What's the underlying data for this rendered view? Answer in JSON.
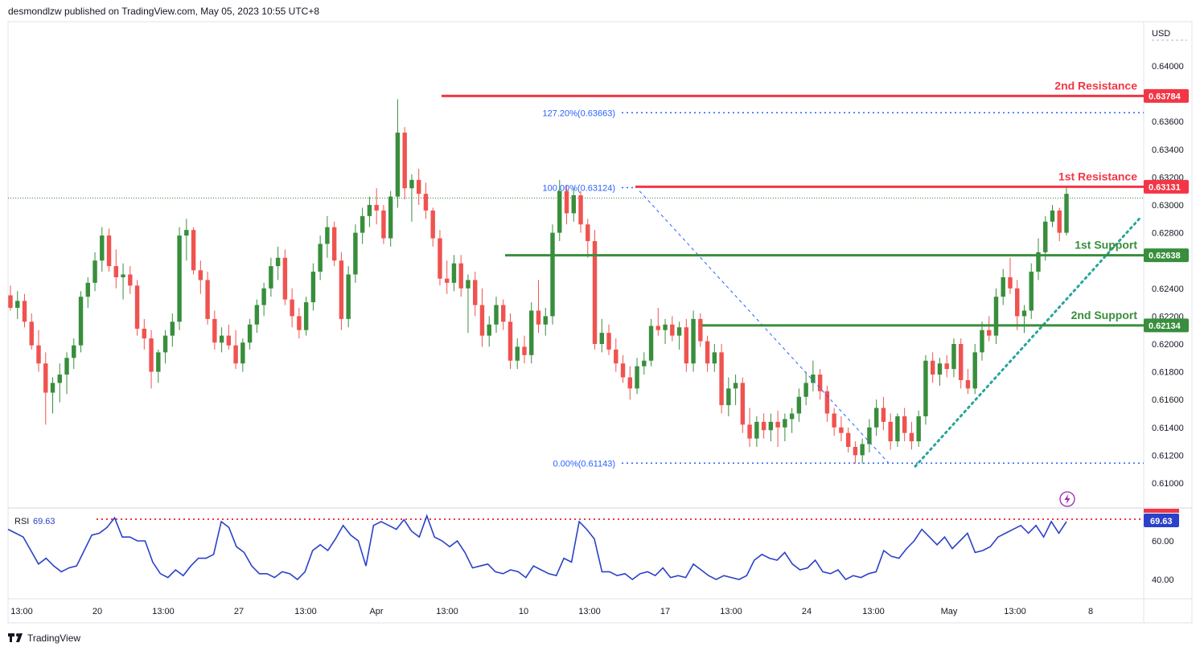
{
  "header": {
    "publisher_line": "desmondlzw published on TradingView.com, May 05, 2023 10:55 UTC+8"
  },
  "footer": {
    "brand": "TradingView"
  },
  "price_axis": {
    "currency": "USD",
    "ticks": [
      "0.64000",
      "0.63600",
      "0.63400",
      "0.63200",
      "0.63000",
      "0.62800",
      "0.62400",
      "0.62200",
      "0.62000",
      "0.61800",
      "0.61600",
      "0.61400",
      "0.61200",
      "0.61000"
    ]
  },
  "levels": {
    "resistance_2": {
      "label": "2nd Resistance",
      "value": "0.63784",
      "color": "#f23645"
    },
    "resistance_1": {
      "label": "1st Resistance",
      "value": "0.63131",
      "color": "#f23645"
    },
    "support_1": {
      "label": "1st Support",
      "value": "0.62638",
      "color": "#388e3c"
    },
    "support_2": {
      "label": "2nd Support",
      "value": "0.62134",
      "color": "#388e3c"
    }
  },
  "fib": {
    "f1272": "127.20%(0.63663)",
    "f100": "100.00%(0.63124)",
    "f0": "0.00%(0.61143)",
    "color": "#2962ff"
  },
  "rsi": {
    "label": "RSI",
    "value": "69.63",
    "ticks": [
      "60.00",
      "40.00"
    ],
    "line_color": "#2a41c9"
  },
  "time_axis": {
    "labels": [
      "13:00",
      "20",
      "13:00",
      "27",
      "13:00",
      "Apr",
      "13:00",
      "10",
      "13:00",
      "17",
      "13:00",
      "24",
      "13:00",
      "May",
      "13:00",
      "8"
    ]
  },
  "chart_data": {
    "type": "candlestick",
    "symbol_currency": "USD",
    "ylim": [
      0.6088,
      0.6415
    ],
    "last_price": 0.63131,
    "candles": [
      {
        "o": 0.6235,
        "h": 0.6242,
        "l": 0.6224,
        "c": 0.6226
      },
      {
        "o": 0.6226,
        "h": 0.6238,
        "l": 0.6218,
        "c": 0.6231
      },
      {
        "o": 0.6231,
        "h": 0.6236,
        "l": 0.6212,
        "c": 0.6216
      },
      {
        "o": 0.6216,
        "h": 0.6222,
        "l": 0.6196,
        "c": 0.6199
      },
      {
        "o": 0.6199,
        "h": 0.621,
        "l": 0.618,
        "c": 0.6186
      },
      {
        "o": 0.6186,
        "h": 0.6194,
        "l": 0.6142,
        "c": 0.6165
      },
      {
        "o": 0.6165,
        "h": 0.6176,
        "l": 0.615,
        "c": 0.6172
      },
      {
        "o": 0.6172,
        "h": 0.6186,
        "l": 0.6158,
        "c": 0.6178
      },
      {
        "o": 0.6178,
        "h": 0.6194,
        "l": 0.6164,
        "c": 0.619
      },
      {
        "o": 0.619,
        "h": 0.6204,
        "l": 0.6182,
        "c": 0.6199
      },
      {
        "o": 0.6199,
        "h": 0.6238,
        "l": 0.6194,
        "c": 0.6234
      },
      {
        "o": 0.6234,
        "h": 0.6248,
        "l": 0.6226,
        "c": 0.6244
      },
      {
        "o": 0.6244,
        "h": 0.6266,
        "l": 0.6238,
        "c": 0.626
      },
      {
        "o": 0.626,
        "h": 0.6284,
        "l": 0.6252,
        "c": 0.6278
      },
      {
        "o": 0.6278,
        "h": 0.6283,
        "l": 0.6252,
        "c": 0.6256
      },
      {
        "o": 0.6256,
        "h": 0.6268,
        "l": 0.624,
        "c": 0.6248
      },
      {
        "o": 0.6248,
        "h": 0.6258,
        "l": 0.6232,
        "c": 0.625
      },
      {
        "o": 0.625,
        "h": 0.6256,
        "l": 0.6236,
        "c": 0.6242
      },
      {
        "o": 0.6242,
        "h": 0.6246,
        "l": 0.6206,
        "c": 0.6211
      },
      {
        "o": 0.6211,
        "h": 0.6218,
        "l": 0.6196,
        "c": 0.6204
      },
      {
        "o": 0.6204,
        "h": 0.621,
        "l": 0.6168,
        "c": 0.618
      },
      {
        "o": 0.618,
        "h": 0.6196,
        "l": 0.6172,
        "c": 0.6194
      },
      {
        "o": 0.6194,
        "h": 0.621,
        "l": 0.6186,
        "c": 0.6206
      },
      {
        "o": 0.6206,
        "h": 0.6222,
        "l": 0.6198,
        "c": 0.6216
      },
      {
        "o": 0.6216,
        "h": 0.6284,
        "l": 0.621,
        "c": 0.6278
      },
      {
        "o": 0.6278,
        "h": 0.629,
        "l": 0.626,
        "c": 0.6282
      },
      {
        "o": 0.6282,
        "h": 0.6284,
        "l": 0.625,
        "c": 0.6253
      },
      {
        "o": 0.6253,
        "h": 0.626,
        "l": 0.6236,
        "c": 0.6246
      },
      {
        "o": 0.6246,
        "h": 0.6252,
        "l": 0.6214,
        "c": 0.6218
      },
      {
        "o": 0.6218,
        "h": 0.6224,
        "l": 0.6196,
        "c": 0.6201
      },
      {
        "o": 0.6201,
        "h": 0.6212,
        "l": 0.6194,
        "c": 0.6206
      },
      {
        "o": 0.6206,
        "h": 0.6214,
        "l": 0.6196,
        "c": 0.6199
      },
      {
        "o": 0.6199,
        "h": 0.621,
        "l": 0.6182,
        "c": 0.6186
      },
      {
        "o": 0.6186,
        "h": 0.6204,
        "l": 0.618,
        "c": 0.6201
      },
      {
        "o": 0.6201,
        "h": 0.6218,
        "l": 0.6196,
        "c": 0.6214
      },
      {
        "o": 0.6214,
        "h": 0.6232,
        "l": 0.6208,
        "c": 0.6228
      },
      {
        "o": 0.6228,
        "h": 0.6244,
        "l": 0.622,
        "c": 0.624
      },
      {
        "o": 0.624,
        "h": 0.6262,
        "l": 0.6234,
        "c": 0.6256
      },
      {
        "o": 0.6256,
        "h": 0.627,
        "l": 0.6246,
        "c": 0.6262
      },
      {
        "o": 0.6262,
        "h": 0.6268,
        "l": 0.6228,
        "c": 0.6232
      },
      {
        "o": 0.6232,
        "h": 0.624,
        "l": 0.6212,
        "c": 0.622
      },
      {
        "o": 0.622,
        "h": 0.6226,
        "l": 0.6204,
        "c": 0.621
      },
      {
        "o": 0.621,
        "h": 0.6234,
        "l": 0.6206,
        "c": 0.623
      },
      {
        "o": 0.623,
        "h": 0.6258,
        "l": 0.6224,
        "c": 0.6252
      },
      {
        "o": 0.6252,
        "h": 0.6278,
        "l": 0.6246,
        "c": 0.6272
      },
      {
        "o": 0.6272,
        "h": 0.6292,
        "l": 0.6262,
        "c": 0.6284
      },
      {
        "o": 0.6284,
        "h": 0.6288,
        "l": 0.6256,
        "c": 0.626
      },
      {
        "o": 0.626,
        "h": 0.6266,
        "l": 0.621,
        "c": 0.6218
      },
      {
        "o": 0.6218,
        "h": 0.6256,
        "l": 0.6212,
        "c": 0.625
      },
      {
        "o": 0.625,
        "h": 0.6286,
        "l": 0.6244,
        "c": 0.628
      },
      {
        "o": 0.628,
        "h": 0.6298,
        "l": 0.6272,
        "c": 0.6292
      },
      {
        "o": 0.6292,
        "h": 0.6306,
        "l": 0.6284,
        "c": 0.63
      },
      {
        "o": 0.63,
        "h": 0.6312,
        "l": 0.6286,
        "c": 0.6296
      },
      {
        "o": 0.6296,
        "h": 0.63,
        "l": 0.6272,
        "c": 0.6276
      },
      {
        "o": 0.6276,
        "h": 0.631,
        "l": 0.627,
        "c": 0.6306
      },
      {
        "o": 0.6306,
        "h": 0.6376,
        "l": 0.6298,
        "c": 0.6352
      },
      {
        "o": 0.6352,
        "h": 0.6356,
        "l": 0.6304,
        "c": 0.6312
      },
      {
        "o": 0.6312,
        "h": 0.6322,
        "l": 0.6288,
        "c": 0.6318
      },
      {
        "o": 0.6318,
        "h": 0.6326,
        "l": 0.63,
        "c": 0.6308
      },
      {
        "o": 0.6308,
        "h": 0.6316,
        "l": 0.629,
        "c": 0.6296
      },
      {
        "o": 0.6296,
        "h": 0.6298,
        "l": 0.627,
        "c": 0.6276
      },
      {
        "o": 0.6276,
        "h": 0.6282,
        "l": 0.6242,
        "c": 0.6247
      },
      {
        "o": 0.6247,
        "h": 0.626,
        "l": 0.6236,
        "c": 0.6244
      },
      {
        "o": 0.6244,
        "h": 0.6264,
        "l": 0.6238,
        "c": 0.6258
      },
      {
        "o": 0.6258,
        "h": 0.6264,
        "l": 0.6234,
        "c": 0.624
      },
      {
        "o": 0.624,
        "h": 0.625,
        "l": 0.6208,
        "c": 0.6246
      },
      {
        "o": 0.6246,
        "h": 0.6252,
        "l": 0.622,
        "c": 0.6228
      },
      {
        "o": 0.6228,
        "h": 0.624,
        "l": 0.6198,
        "c": 0.6206
      },
      {
        "o": 0.6206,
        "h": 0.622,
        "l": 0.6198,
        "c": 0.6214
      },
      {
        "o": 0.6214,
        "h": 0.6234,
        "l": 0.6208,
        "c": 0.6228
      },
      {
        "o": 0.6228,
        "h": 0.6232,
        "l": 0.621,
        "c": 0.6216
      },
      {
        "o": 0.6216,
        "h": 0.6222,
        "l": 0.6182,
        "c": 0.6188
      },
      {
        "o": 0.6188,
        "h": 0.6204,
        "l": 0.6182,
        "c": 0.6198
      },
      {
        "o": 0.6198,
        "h": 0.6206,
        "l": 0.6186,
        "c": 0.6192
      },
      {
        "o": 0.6192,
        "h": 0.623,
        "l": 0.6186,
        "c": 0.6224
      },
      {
        "o": 0.6224,
        "h": 0.6246,
        "l": 0.6208,
        "c": 0.6214
      },
      {
        "o": 0.6214,
        "h": 0.6226,
        "l": 0.6206,
        "c": 0.622
      },
      {
        "o": 0.622,
        "h": 0.6286,
        "l": 0.6214,
        "c": 0.628
      },
      {
        "o": 0.628,
        "h": 0.6318,
        "l": 0.6274,
        "c": 0.631
      },
      {
        "o": 0.631,
        "h": 0.6314,
        "l": 0.6286,
        "c": 0.6294
      },
      {
        "o": 0.6294,
        "h": 0.6312,
        "l": 0.6288,
        "c": 0.6307
      },
      {
        "o": 0.6307,
        "h": 0.631,
        "l": 0.628,
        "c": 0.6286
      },
      {
        "o": 0.6286,
        "h": 0.629,
        "l": 0.6262,
        "c": 0.6274
      },
      {
        "o": 0.6274,
        "h": 0.6282,
        "l": 0.6196,
        "c": 0.62
      },
      {
        "o": 0.62,
        "h": 0.6218,
        "l": 0.6194,
        "c": 0.6208
      },
      {
        "o": 0.6208,
        "h": 0.6214,
        "l": 0.6192,
        "c": 0.6196
      },
      {
        "o": 0.6196,
        "h": 0.6204,
        "l": 0.618,
        "c": 0.6186
      },
      {
        "o": 0.6186,
        "h": 0.6192,
        "l": 0.6172,
        "c": 0.6176
      },
      {
        "o": 0.6176,
        "h": 0.6184,
        "l": 0.616,
        "c": 0.6168
      },
      {
        "o": 0.6168,
        "h": 0.619,
        "l": 0.6164,
        "c": 0.6184
      },
      {
        "o": 0.6184,
        "h": 0.6194,
        "l": 0.6178,
        "c": 0.6188
      },
      {
        "o": 0.6188,
        "h": 0.6218,
        "l": 0.6184,
        "c": 0.6213
      },
      {
        "o": 0.6213,
        "h": 0.6226,
        "l": 0.6206,
        "c": 0.621
      },
      {
        "o": 0.621,
        "h": 0.6218,
        "l": 0.62,
        "c": 0.6214
      },
      {
        "o": 0.6214,
        "h": 0.622,
        "l": 0.6202,
        "c": 0.6206
      },
      {
        "o": 0.6206,
        "h": 0.6216,
        "l": 0.6196,
        "c": 0.6212
      },
      {
        "o": 0.6212,
        "h": 0.6218,
        "l": 0.618,
        "c": 0.6186
      },
      {
        "o": 0.6186,
        "h": 0.6224,
        "l": 0.618,
        "c": 0.6218
      },
      {
        "o": 0.6218,
        "h": 0.6222,
        "l": 0.6198,
        "c": 0.6202
      },
      {
        "o": 0.6202,
        "h": 0.6206,
        "l": 0.618,
        "c": 0.6186
      },
      {
        "o": 0.6186,
        "h": 0.62,
        "l": 0.618,
        "c": 0.6194
      },
      {
        "o": 0.6194,
        "h": 0.62,
        "l": 0.615,
        "c": 0.6156
      },
      {
        "o": 0.6156,
        "h": 0.6176,
        "l": 0.6148,
        "c": 0.6168
      },
      {
        "o": 0.6168,
        "h": 0.6178,
        "l": 0.6156,
        "c": 0.6172
      },
      {
        "o": 0.6172,
        "h": 0.6176,
        "l": 0.6136,
        "c": 0.6142
      },
      {
        "o": 0.6142,
        "h": 0.6154,
        "l": 0.6126,
        "c": 0.6132
      },
      {
        "o": 0.6132,
        "h": 0.6148,
        "l": 0.6126,
        "c": 0.6144
      },
      {
        "o": 0.6144,
        "h": 0.615,
        "l": 0.6132,
        "c": 0.6138
      },
      {
        "o": 0.6138,
        "h": 0.615,
        "l": 0.613,
        "c": 0.6144
      },
      {
        "o": 0.6144,
        "h": 0.6152,
        "l": 0.6126,
        "c": 0.614
      },
      {
        "o": 0.614,
        "h": 0.615,
        "l": 0.613,
        "c": 0.6146
      },
      {
        "o": 0.6146,
        "h": 0.6154,
        "l": 0.6136,
        "c": 0.615
      },
      {
        "o": 0.615,
        "h": 0.6168,
        "l": 0.6144,
        "c": 0.6162
      },
      {
        "o": 0.6162,
        "h": 0.618,
        "l": 0.6156,
        "c": 0.6172
      },
      {
        "o": 0.6172,
        "h": 0.6188,
        "l": 0.6166,
        "c": 0.6178
      },
      {
        "o": 0.6178,
        "h": 0.6182,
        "l": 0.616,
        "c": 0.6166
      },
      {
        "o": 0.6166,
        "h": 0.617,
        "l": 0.6144,
        "c": 0.615
      },
      {
        "o": 0.615,
        "h": 0.6154,
        "l": 0.6134,
        "c": 0.614
      },
      {
        "o": 0.614,
        "h": 0.6148,
        "l": 0.613,
        "c": 0.6136
      },
      {
        "o": 0.6136,
        "h": 0.614,
        "l": 0.6122,
        "c": 0.6126
      },
      {
        "o": 0.6126,
        "h": 0.613,
        "l": 0.6114,
        "c": 0.612
      },
      {
        "o": 0.612,
        "h": 0.6132,
        "l": 0.6114,
        "c": 0.6128
      },
      {
        "o": 0.6128,
        "h": 0.6146,
        "l": 0.6122,
        "c": 0.614
      },
      {
        "o": 0.614,
        "h": 0.616,
        "l": 0.6134,
        "c": 0.6154
      },
      {
        "o": 0.6154,
        "h": 0.6162,
        "l": 0.6138,
        "c": 0.6144
      },
      {
        "o": 0.6144,
        "h": 0.615,
        "l": 0.6124,
        "c": 0.613
      },
      {
        "o": 0.613,
        "h": 0.615,
        "l": 0.6126,
        "c": 0.6148
      },
      {
        "o": 0.6148,
        "h": 0.6154,
        "l": 0.613,
        "c": 0.6136
      },
      {
        "o": 0.6136,
        "h": 0.6144,
        "l": 0.6124,
        "c": 0.613
      },
      {
        "o": 0.613,
        "h": 0.6152,
        "l": 0.6126,
        "c": 0.6148
      },
      {
        "o": 0.6148,
        "h": 0.6192,
        "l": 0.6142,
        "c": 0.6188
      },
      {
        "o": 0.6188,
        "h": 0.6194,
        "l": 0.6172,
        "c": 0.6178
      },
      {
        "o": 0.6178,
        "h": 0.619,
        "l": 0.617,
        "c": 0.6186
      },
      {
        "o": 0.6186,
        "h": 0.6192,
        "l": 0.6176,
        "c": 0.6182
      },
      {
        "o": 0.6182,
        "h": 0.6204,
        "l": 0.6176,
        "c": 0.62
      },
      {
        "o": 0.62,
        "h": 0.6204,
        "l": 0.6168,
        "c": 0.6174
      },
      {
        "o": 0.6174,
        "h": 0.6182,
        "l": 0.6164,
        "c": 0.6168
      },
      {
        "o": 0.6168,
        "h": 0.62,
        "l": 0.6164,
        "c": 0.6194
      },
      {
        "o": 0.6194,
        "h": 0.6216,
        "l": 0.6188,
        "c": 0.621
      },
      {
        "o": 0.621,
        "h": 0.622,
        "l": 0.6202,
        "c": 0.6206
      },
      {
        "o": 0.6206,
        "h": 0.624,
        "l": 0.62,
        "c": 0.6234
      },
      {
        "o": 0.6234,
        "h": 0.6254,
        "l": 0.6228,
        "c": 0.6248
      },
      {
        "o": 0.6248,
        "h": 0.6262,
        "l": 0.6236,
        "c": 0.624
      },
      {
        "o": 0.624,
        "h": 0.6246,
        "l": 0.621,
        "c": 0.622
      },
      {
        "o": 0.622,
        "h": 0.6228,
        "l": 0.6208,
        "c": 0.6224
      },
      {
        "o": 0.6224,
        "h": 0.6258,
        "l": 0.6218,
        "c": 0.6252
      },
      {
        "o": 0.6252,
        "h": 0.6276,
        "l": 0.6246,
        "c": 0.6266
      },
      {
        "o": 0.6266,
        "h": 0.6292,
        "l": 0.626,
        "c": 0.6288
      },
      {
        "o": 0.6288,
        "h": 0.63,
        "l": 0.6284,
        "c": 0.6296
      },
      {
        "o": 0.6296,
        "h": 0.6298,
        "l": 0.6274,
        "c": 0.628
      },
      {
        "o": 0.628,
        "h": 0.6313,
        "l": 0.6278,
        "c": 0.6308
      }
    ]
  }
}
